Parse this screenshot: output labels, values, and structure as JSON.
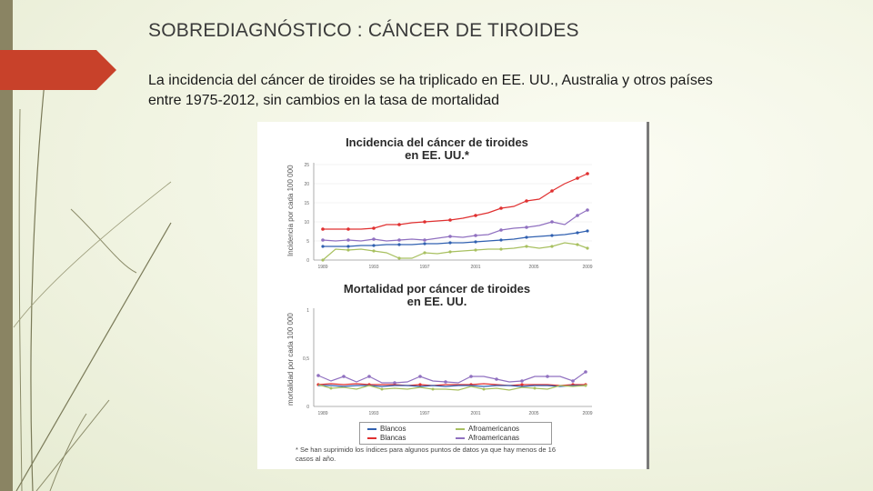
{
  "slide": {
    "title": "SOBREDIAGNÓSTICO : CÁNCER DE TIROIDES",
    "subtitle": "La incidencia del cáncer de tiroides se ha triplicado en EE. UU., Australia y otros países entre  1975-2012, sin cambios en la tasa de mortalidad"
  },
  "figure": {
    "incidence": {
      "title_line1": "Incidencia del cáncer de tiroides",
      "title_line2": "en EE. UU.*",
      "ylabel": "Incidencia por cada 100 000",
      "yticks": [
        "25",
        "20",
        "15",
        "10",
        "5",
        "0"
      ],
      "xticks": [
        "1989",
        "1993",
        "1997",
        "2001",
        "2005",
        "2009"
      ]
    },
    "mortality": {
      "title_line1": "Mortalidad por cáncer de tiroides",
      "title_line2": "en EE. UU.",
      "ylabel": "mortalidad por cada 100 000",
      "yticks": [
        "1",
        "0,5",
        "0"
      ],
      "xticks": [
        "1989",
        "1993",
        "1997",
        "2001",
        "2005",
        "2009"
      ]
    },
    "legend": {
      "blancos": "Blancos",
      "blancas": "Blancas",
      "afro_m": "Afroamericanos",
      "afro_f": "Afroamericanas",
      "colors": {
        "blancos": "#3060b0",
        "blancas": "#e03030",
        "afro_m": "#a8c060",
        "afro_f": "#9070c0"
      }
    },
    "footnote": "* Se han suprimido los índices para algunos puntos de datos ya que hay menos de 16 casos al año."
  }
}
